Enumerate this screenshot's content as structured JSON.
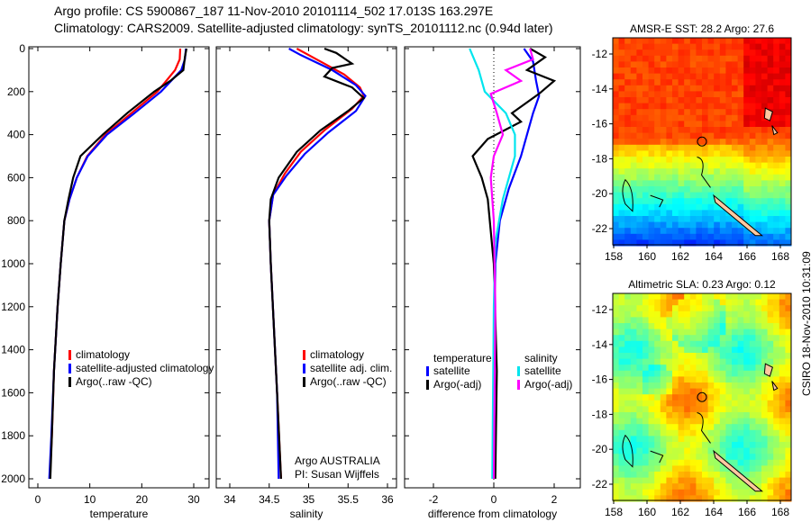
{
  "header": {
    "line1": "Argo profile: CS 5900867_187 11-Nov-2010 20101114_502 17.013S 163.297E",
    "line2": "Climatology: CARS2009. Satellite-adjusted climatology: synTS_20101112.nc (0.94d later)"
  },
  "footer_stamp": "CSIRO 18-Nov-2010 10:31:09",
  "colors": {
    "climatology": "#ff0000",
    "satellite": "#0000ff",
    "argo": "#000000",
    "sal_satellite": "#00e5ee",
    "sal_argo": "#ff00ff",
    "land": "#ffc8a0"
  },
  "chart_data": [
    {
      "type": "line",
      "xlabel": "temperature",
      "xlim": [
        -2,
        31
      ],
      "ylim": [
        2050,
        0
      ],
      "xticks": [
        "0",
        "10",
        "20",
        "30"
      ],
      "yticks": [
        "0",
        "200",
        "400",
        "600",
        "800",
        "1000",
        "1200",
        "1400",
        "1600",
        "1800",
        "2000"
      ],
      "legend": [
        "climatology",
        "satellite-adjusted climatology",
        "Argo(..raw -QC)"
      ],
      "series": [
        {
          "name": "climatology",
          "color": "#ff0000",
          "points": [
            [
              27.4,
              0
            ],
            [
              27.3,
              50
            ],
            [
              26.4,
              100
            ],
            [
              23,
              200
            ],
            [
              18,
              300
            ],
            [
              13,
              400
            ],
            [
              9.5,
              500
            ],
            [
              7.5,
              600
            ],
            [
              6.1,
              700
            ],
            [
              5.1,
              800
            ],
            [
              4.4,
              1000
            ],
            [
              3.8,
              1200
            ],
            [
              3.1,
              1500
            ],
            [
              2.7,
              1800
            ],
            [
              2.3,
              2000
            ]
          ]
        },
        {
          "name": "satellite-adjusted climatology",
          "color": "#0000ff",
          "points": [
            [
              28.5,
              0
            ],
            [
              28.3,
              50
            ],
            [
              27.6,
              100
            ],
            [
              23.7,
              200
            ],
            [
              18.6,
              300
            ],
            [
              13.3,
              400
            ],
            [
              9.6,
              500
            ],
            [
              7.5,
              600
            ],
            [
              6.1,
              700
            ],
            [
              5.1,
              800
            ],
            [
              4.4,
              1000
            ],
            [
              3.8,
              1200
            ],
            [
              3.1,
              1500
            ],
            [
              2.6,
              1800
            ],
            [
              2.2,
              2000
            ]
          ]
        },
        {
          "name": "Argo(..raw -QC)",
          "color": "#000000",
          "points": [
            [
              28.6,
              0
            ],
            [
              28.3,
              40
            ],
            [
              28,
              100
            ],
            [
              25.5,
              150
            ],
            [
              22.4,
              200
            ],
            [
              17.2,
              300
            ],
            [
              12.5,
              400
            ],
            [
              8.2,
              500
            ],
            [
              6.8,
              600
            ],
            [
              5.9,
              700
            ],
            [
              5.1,
              800
            ],
            [
              4.4,
              1000
            ],
            [
              3.8,
              1200
            ],
            [
              3.1,
              1500
            ],
            [
              2.7,
              1800
            ],
            [
              2.4,
              2000
            ]
          ]
        }
      ]
    },
    {
      "type": "line",
      "xlabel": "salinity",
      "xlim": [
        33.8,
        36.1
      ],
      "ylim": [
        2050,
        0
      ],
      "xticks": [
        "34",
        "34.5",
        "35",
        "35.5",
        "36"
      ],
      "legend": [
        "climatology",
        "satellite adj. clim.",
        "Argo(..raw -QC)"
      ],
      "annotation": [
        "Argo AUSTRALIA",
        "PI: Susan Wijffels"
      ],
      "series": [
        {
          "name": "climatology",
          "color": "#ff0000",
          "points": [
            [
              34.85,
              0
            ],
            [
              35.1,
              50
            ],
            [
              35.45,
              120
            ],
            [
              35.65,
              180
            ],
            [
              35.7,
              220
            ],
            [
              35.55,
              280
            ],
            [
              35.2,
              380
            ],
            [
              34.9,
              480
            ],
            [
              34.7,
              580
            ],
            [
              34.55,
              680
            ],
            [
              34.5,
              800
            ],
            [
              34.52,
              1000
            ],
            [
              34.56,
              1300
            ],
            [
              34.6,
              1600
            ],
            [
              34.65,
              2000
            ]
          ]
        },
        {
          "name": "satellite adj. clim.",
          "color": "#0000ff",
          "points": [
            [
              34.75,
              0
            ],
            [
              34.9,
              30
            ],
            [
              35.3,
              100
            ],
            [
              35.6,
              170
            ],
            [
              35.72,
              220
            ],
            [
              35.6,
              290
            ],
            [
              35.25,
              390
            ],
            [
              34.95,
              490
            ],
            [
              34.72,
              590
            ],
            [
              34.55,
              680
            ],
            [
              34.5,
              800
            ],
            [
              34.52,
              1000
            ],
            [
              34.56,
              1300
            ],
            [
              34.6,
              1600
            ],
            [
              34.62,
              2000
            ]
          ]
        },
        {
          "name": "Argo(..raw -QC)",
          "color": "#000000",
          "points": [
            [
              35.2,
              0
            ],
            [
              35.35,
              20
            ],
            [
              35.55,
              70
            ],
            [
              35.3,
              90
            ],
            [
              35.2,
              130
            ],
            [
              35.55,
              180
            ],
            [
              35.7,
              230
            ],
            [
              35.5,
              290
            ],
            [
              35.15,
              380
            ],
            [
              34.85,
              480
            ],
            [
              34.62,
              600
            ],
            [
              34.52,
              700
            ],
            [
              34.5,
              800
            ],
            [
              34.52,
              1000
            ],
            [
              34.56,
              1300
            ],
            [
              34.6,
              1600
            ],
            [
              34.65,
              2000
            ]
          ]
        }
      ]
    },
    {
      "type": "line",
      "xlabel": "difference from climatology",
      "xlim": [
        -2.9,
        2.9
      ],
      "ylim": [
        2050,
        0
      ],
      "xticks": [
        "-2",
        "0",
        "2"
      ],
      "legend_temperature": {
        "title": "temperature",
        "items": [
          "satellite",
          "Argo(-adj)"
        ]
      },
      "legend_salinity": {
        "title": "salinity",
        "items": [
          "satellite",
          "Argo(-adj)"
        ]
      },
      "series": [
        {
          "name": "temperature satellite",
          "color": "#0000ff",
          "points": [
            [
              1.0,
              0
            ],
            [
              1.3,
              60
            ],
            [
              1.4,
              150
            ],
            [
              1.5,
              220
            ],
            [
              1.3,
              300
            ],
            [
              1.1,
              400
            ],
            [
              0.9,
              500
            ],
            [
              0.5,
              650
            ],
            [
              0.2,
              800
            ],
            [
              0.05,
              1000
            ],
            [
              0,
              1500
            ],
            [
              0,
              2000
            ]
          ]
        },
        {
          "name": "temperature Argo(-adj)",
          "color": "#000000",
          "points": [
            [
              1.2,
              0
            ],
            [
              1.7,
              40
            ],
            [
              1.1,
              100
            ],
            [
              2.0,
              150
            ],
            [
              1.5,
              210
            ],
            [
              0.6,
              300
            ],
            [
              0.9,
              340
            ],
            [
              -0.2,
              420
            ],
            [
              -0.7,
              500
            ],
            [
              -0.4,
              600
            ],
            [
              -0.2,
              700
            ],
            [
              -0.1,
              850
            ],
            [
              0.0,
              1000
            ],
            [
              0.1,
              1500
            ],
            [
              0.05,
              2000
            ]
          ]
        },
        {
          "name": "salinity satellite",
          "color": "#00e5ee",
          "points": [
            [
              -0.8,
              0
            ],
            [
              -0.5,
              100
            ],
            [
              -0.3,
              200
            ],
            [
              0.4,
              300
            ],
            [
              0.7,
              400
            ],
            [
              0.7,
              500
            ],
            [
              0.5,
              600
            ],
            [
              0.3,
              700
            ],
            [
              0.05,
              900
            ],
            [
              0,
              1200
            ],
            [
              -0.05,
              2000
            ]
          ]
        },
        {
          "name": "salinity Argo(-adj)",
          "color": "#ff00ff",
          "points": [
            [
              1.2,
              0
            ],
            [
              1.3,
              50
            ],
            [
              0.4,
              100
            ],
            [
              0.9,
              150
            ],
            [
              -0.1,
              210
            ],
            [
              0.1,
              300
            ],
            [
              0.3,
              400
            ],
            [
              0.0,
              500
            ],
            [
              -0.1,
              600
            ],
            [
              0.0,
              800
            ],
            [
              0.05,
              1200
            ],
            [
              0.0,
              2000
            ]
          ]
        }
      ]
    },
    {
      "type": "heatmap",
      "title": "AMSR-E SST: 28.2 Argo: 27.6",
      "xticks": [
        "158",
        "160",
        "162",
        "164",
        "166",
        "168"
      ],
      "yticks": [
        "-12",
        "-14",
        "-16",
        "-18",
        "-20",
        "-22"
      ],
      "argo_position": [
        163.297,
        -17.013
      ]
    },
    {
      "type": "heatmap",
      "title": "Altimetric SLA: 0.23 Argo: 0.12",
      "xticks": [
        "158",
        "160",
        "162",
        "164",
        "166",
        "168"
      ],
      "yticks": [
        "-12",
        "-14",
        "-16",
        "-18",
        "-20",
        "-22"
      ],
      "argo_position": [
        163.297,
        -17.013
      ]
    }
  ]
}
